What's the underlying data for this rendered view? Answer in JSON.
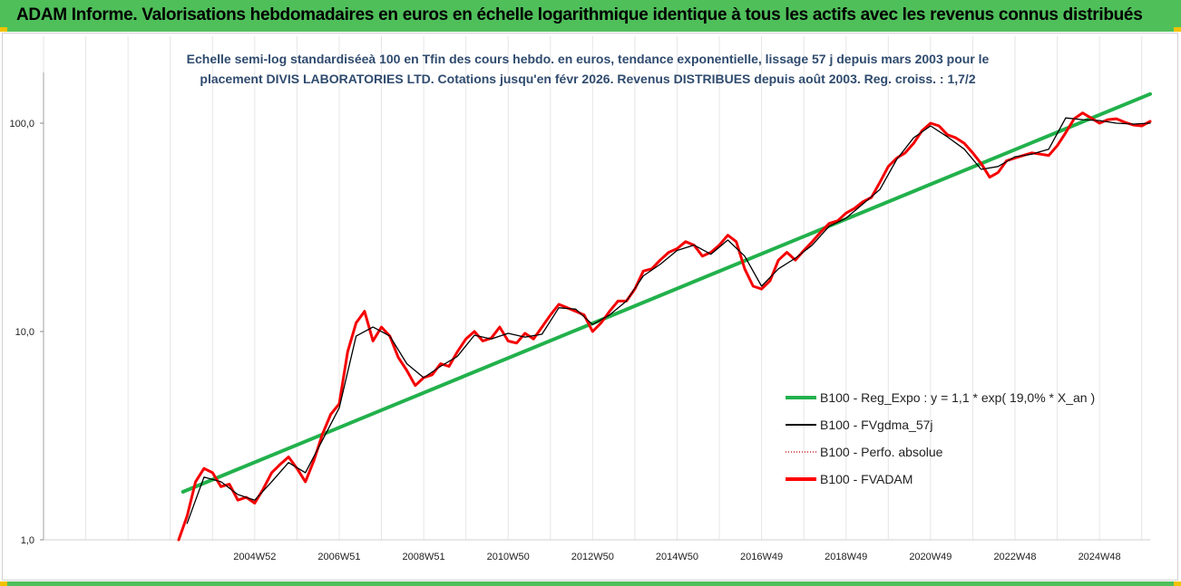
{
  "header": {
    "title": "ADAM Informe. Valorisations hebdomadaires en euros en échelle logarithmique identique à tous les actifs avec les revenus connus distribués"
  },
  "colors": {
    "header_bg": "#4fbf5a",
    "accent_corner": "#f2c200",
    "trend": "#22b14c",
    "smooth": "#000000",
    "perf": "#c00000",
    "fvadam": "#ff0000"
  },
  "chart_data": {
    "type": "line",
    "subtitle_lines": [
      "Echelle semi-log standardiséeà 100 en Tfin des cours hebdo. en euros, tendance exponentielle, lissage 57 j depuis mars 2003 pour le",
      "placement DIVIS LABORATORIES LTD. Cotations jusqu'en févr 2026. Revenus DISTRIBUES depuis août 2003. Reg. croiss. : 1,7/2"
    ],
    "y_scale": "log",
    "ylim": [
      1,
      170
    ],
    "y_ticks": [
      "1,0",
      "10,0",
      "100,0"
    ],
    "y_tick_values": [
      1,
      10,
      100
    ],
    "xlim": [
      2000.0,
      2026.2
    ],
    "x_ticks": [
      "2004W52",
      "2006W51",
      "2008W51",
      "2010W50",
      "2012W50",
      "2014W50",
      "2016W49",
      "2018W49",
      "2020W49",
      "2022W48",
      "2024W48"
    ],
    "x_tick_values": [
      2005.0,
      2007.0,
      2009.0,
      2011.0,
      2013.0,
      2015.0,
      2017.0,
      2019.0,
      2021.0,
      2023.0,
      2025.0
    ],
    "grid": "vertical",
    "legend_position": "right",
    "legend": [
      {
        "label": "B100 - Reg_Expo : y = 1,1 * exp( 19,0% *  X_an )",
        "style": "trend"
      },
      {
        "label": "B100 - FVgdma_57j",
        "style": "smooth"
      },
      {
        "label": "B100 - Perfo. absolue",
        "style": "perf"
      },
      {
        "label": "B100 - FVADAM",
        "style": "fvadam"
      }
    ],
    "series": [
      {
        "name": "B100 - Reg_Expo : y = 1,1 * exp( 19,0% *  X_an )",
        "x": [
          2003.3,
          2026.2
        ],
        "y": [
          1.7,
          138
        ]
      },
      {
        "name": "B100 - FVADAM",
        "x": [
          2003.2,
          2003.4,
          2003.6,
          2003.8,
          2004.0,
          2004.2,
          2004.4,
          2004.6,
          2004.8,
          2005.0,
          2005.2,
          2005.4,
          2005.6,
          2005.8,
          2006.0,
          2006.2,
          2006.4,
          2006.6,
          2006.8,
          2007.0,
          2007.2,
          2007.4,
          2007.6,
          2007.8,
          2008.0,
          2008.2,
          2008.4,
          2008.6,
          2008.8,
          2009.0,
          2009.2,
          2009.4,
          2009.6,
          2009.8,
          2010.0,
          2010.2,
          2010.4,
          2010.6,
          2010.8,
          2011.0,
          2011.2,
          2011.4,
          2011.6,
          2011.8,
          2012.0,
          2012.2,
          2012.4,
          2012.6,
          2012.8,
          2013.0,
          2013.2,
          2013.4,
          2013.6,
          2013.8,
          2014.0,
          2014.2,
          2014.4,
          2014.6,
          2014.8,
          2015.0,
          2015.2,
          2015.4,
          2015.6,
          2015.8,
          2016.0,
          2016.2,
          2016.4,
          2016.6,
          2016.8,
          2017.0,
          2017.2,
          2017.4,
          2017.6,
          2017.8,
          2018.0,
          2018.2,
          2018.4,
          2018.6,
          2018.8,
          2019.0,
          2019.2,
          2019.4,
          2019.6,
          2019.8,
          2020.0,
          2020.2,
          2020.4,
          2020.6,
          2020.8,
          2021.0,
          2021.2,
          2021.4,
          2021.6,
          2021.8,
          2022.0,
          2022.2,
          2022.4,
          2022.6,
          2022.8,
          2023.0,
          2023.2,
          2023.4,
          2023.6,
          2023.8,
          2024.0,
          2024.2,
          2024.4,
          2024.6,
          2024.8,
          2025.0,
          2025.2,
          2025.4,
          2025.6,
          2025.8,
          2026.0,
          2026.2
        ],
        "y": [
          1.0,
          1.3,
          1.9,
          2.2,
          2.1,
          1.8,
          1.85,
          1.55,
          1.6,
          1.5,
          1.75,
          2.1,
          2.3,
          2.5,
          2.2,
          1.9,
          2.4,
          3.2,
          4.0,
          4.5,
          8.0,
          11.0,
          12.5,
          9.0,
          10.5,
          9.5,
          7.5,
          6.5,
          5.5,
          6.0,
          6.2,
          7.0,
          6.8,
          8.0,
          9.2,
          10.0,
          9.0,
          9.3,
          10.5,
          9.0,
          8.8,
          9.8,
          9.2,
          10.5,
          12.0,
          13.5,
          13.0,
          12.5,
          12.0,
          10.0,
          11.0,
          12.5,
          14.0,
          14.0,
          16.0,
          19.5,
          20.0,
          22.0,
          24.0,
          25.0,
          27.0,
          26.0,
          23.0,
          24.0,
          26.0,
          29.0,
          27.0,
          20.0,
          16.5,
          16.0,
          17.5,
          22.0,
          24.0,
          22.0,
          24.5,
          27.0,
          30.0,
          33.0,
          34.0,
          37.0,
          39.0,
          42.0,
          44.0,
          52.0,
          62.0,
          68.0,
          72.0,
          80.0,
          92.0,
          100.0,
          97.0,
          88.0,
          85.0,
          80.0,
          72.0,
          64.0,
          55.0,
          58.0,
          66.0,
          68.0,
          70.0,
          72.0,
          71.0,
          70.0,
          78.0,
          90.0,
          105.0,
          112.0,
          106.0,
          100.0,
          104.0,
          105.0,
          101.0,
          98.0,
          97.0,
          102.0
        ]
      },
      {
        "name": "B100 - FVgdma_57j",
        "x": [
          2003.4,
          2003.8,
          2004.2,
          2004.6,
          2005.0,
          2005.4,
          2005.8,
          2006.2,
          2006.6,
          2007.0,
          2007.4,
          2007.8,
          2008.2,
          2008.6,
          2009.0,
          2009.4,
          2009.8,
          2010.2,
          2010.6,
          2011.0,
          2011.4,
          2011.8,
          2012.2,
          2012.6,
          2013.0,
          2013.4,
          2013.8,
          2014.2,
          2014.6,
          2015.0,
          2015.4,
          2015.8,
          2016.2,
          2016.6,
          2017.0,
          2017.4,
          2017.8,
          2018.2,
          2018.6,
          2019.0,
          2019.4,
          2019.8,
          2020.2,
          2020.6,
          2021.0,
          2021.4,
          2021.8,
          2022.2,
          2022.6,
          2023.0,
          2023.4,
          2023.8,
          2024.2,
          2024.6,
          2025.0,
          2025.4,
          2025.8,
          2026.2
        ],
        "y": [
          1.2,
          2.0,
          1.9,
          1.65,
          1.55,
          1.9,
          2.35,
          2.1,
          3.0,
          4.3,
          9.5,
          10.5,
          9.5,
          7.0,
          6.0,
          6.8,
          7.6,
          9.6,
          9.2,
          9.8,
          9.4,
          9.7,
          13.0,
          12.8,
          10.8,
          12.0,
          14.0,
          18.5,
          21.0,
          24.5,
          26.0,
          23.5,
          27.5,
          23.0,
          16.5,
          20.0,
          22.5,
          26.0,
          32.0,
          35.0,
          41.0,
          48.0,
          67.0,
          85.0,
          97.0,
          86.0,
          75.0,
          60.0,
          62.0,
          69.0,
          71.0,
          75.0,
          106.0,
          104.0,
          103.0,
          100.0,
          99.0,
          100.0
        ]
      }
    ]
  }
}
